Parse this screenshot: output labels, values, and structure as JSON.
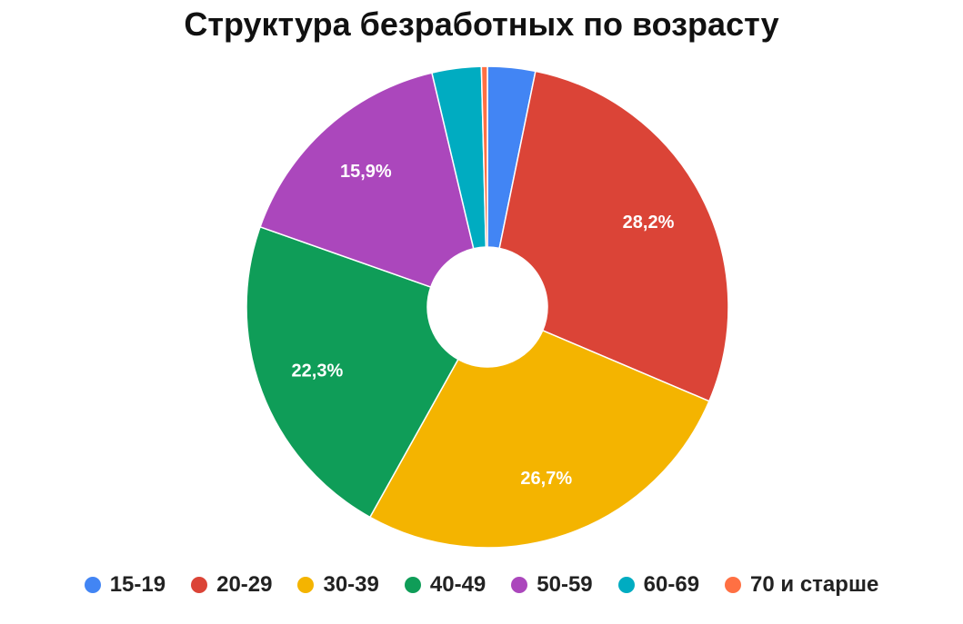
{
  "chart_data": {
    "type": "pie",
    "donut": true,
    "title": "Структура безработных по возрасту",
    "categories": [
      "15-19",
      "20-29",
      "30-39",
      "40-49",
      "50-59",
      "60-69",
      "70 и старше"
    ],
    "values": [
      3.2,
      28.2,
      26.7,
      22.3,
      15.9,
      3.3,
      0.4
    ],
    "colors": [
      "#4285f4",
      "#db4437",
      "#f4b400",
      "#0f9d58",
      "#ab47bc",
      "#00acc1",
      "#ff7043"
    ],
    "data_labels": [
      "",
      "28,2%",
      "26,7%",
      "22,3%",
      "15,9%",
      "",
      ""
    ],
    "legend_position": "bottom"
  }
}
